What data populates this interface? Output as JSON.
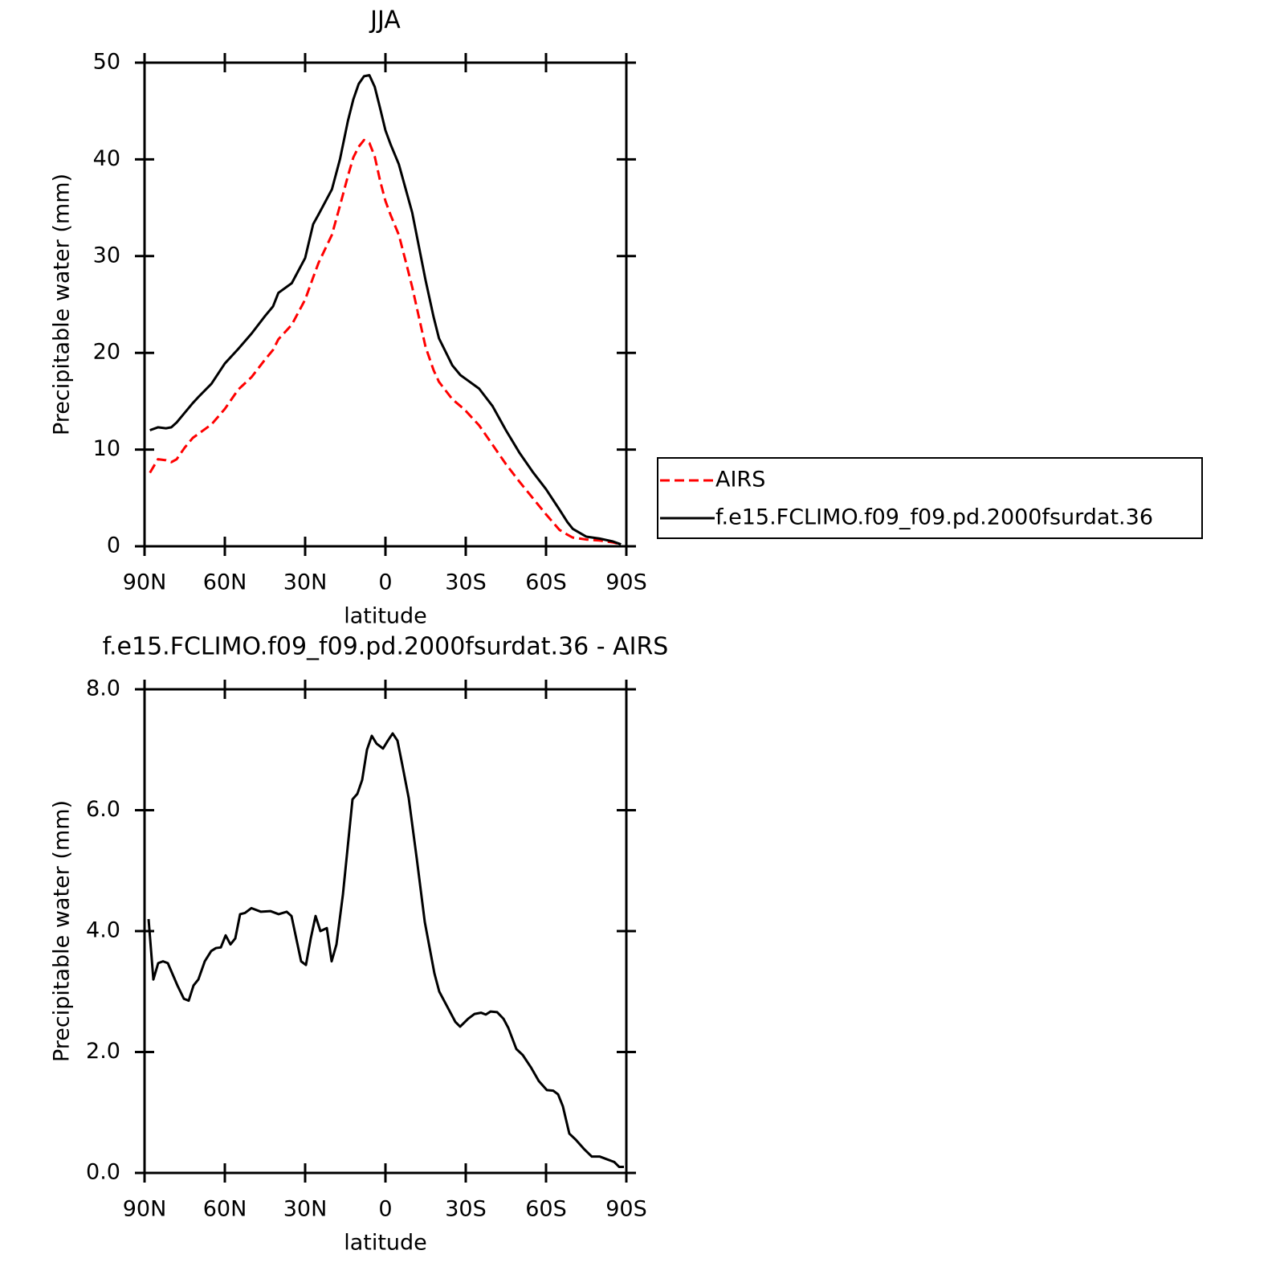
{
  "chart_data": [
    {
      "type": "line",
      "title": "JJA",
      "xlabel": "latitude",
      "ylabel": "Precipitable water (mm)",
      "xlim": [
        90,
        -90
      ],
      "xticks": [
        {
          "value": 90,
          "label": "90N"
        },
        {
          "value": 60,
          "label": "60N"
        },
        {
          "value": 30,
          "label": "30N"
        },
        0,
        {
          "value": -30,
          "label": "30S"
        },
        {
          "value": -60,
          "label": "60S"
        },
        {
          "value": -90,
          "label": "90S"
        }
      ],
      "ylim": [
        0,
        50
      ],
      "yticks": [
        0,
        10,
        20,
        30,
        40,
        50
      ],
      "legend_position": "right",
      "x": [
        88,
        85,
        82,
        80,
        78,
        75,
        72,
        70,
        65,
        60,
        55,
        50,
        45,
        42,
        40,
        35,
        30,
        27,
        25,
        20,
        17,
        14,
        12,
        10,
        8,
        6,
        4,
        2,
        0,
        -2,
        -5,
        -8,
        -10,
        -15,
        -18,
        -20,
        -25,
        -28,
        -30,
        -35,
        -40,
        -45,
        -50,
        -55,
        -60,
        -65,
        -68,
        -70,
        -75,
        -80,
        -85,
        -88
      ],
      "series": [
        {
          "name": "AIRS",
          "color": "#ff0000",
          "linestyle": "dashed",
          "values": [
            7.6,
            9.0,
            8.9,
            8.7,
            9.0,
            10.2,
            11.2,
            11.6,
            12.6,
            14.2,
            16.2,
            17.5,
            19.3,
            20.3,
            21.4,
            22.9,
            25.5,
            27.8,
            29.3,
            32.2,
            35.2,
            38.3,
            40.2,
            41.3,
            42.0,
            41.7,
            40.3,
            37.8,
            35.7,
            34.2,
            32.2,
            29,
            26.8,
            20.6,
            18.2,
            17,
            15.2,
            14.5,
            14,
            12.5,
            10.5,
            8.5,
            6.7,
            5,
            3.3,
            1.7,
            1.2,
            0.9,
            0.7,
            0.6,
            0.4,
            0.2
          ]
        },
        {
          "name": "f.e15.FCLIMO.f09_f09.pd.2000fsurdat.36",
          "color": "#000000",
          "linestyle": "solid",
          "values": [
            12,
            12.3,
            12.2,
            12.3,
            12.8,
            13.8,
            14.8,
            15.4,
            16.8,
            18.9,
            20.4,
            22,
            23.8,
            24.8,
            26.2,
            27.2,
            29.8,
            33.3,
            34.3,
            36.9,
            40,
            44,
            46.2,
            47.8,
            48.6,
            48.7,
            47.5,
            45.3,
            43,
            41.5,
            39.5,
            36.5,
            34.5,
            27.5,
            23.7,
            21.5,
            18.7,
            17.7,
            17.3,
            16.3,
            14.5,
            12,
            9.7,
            7.7,
            5.9,
            3.8,
            2.5,
            1.8,
            1,
            0.8,
            0.5,
            0.2
          ]
        }
      ]
    },
    {
      "type": "line",
      "title": "f.e15.FCLIMO.f09_f09.pd.2000fsurdat.36 - AIRS",
      "xlabel": "latitude",
      "ylabel": "Precipitable water (mm)",
      "xlim": [
        90,
        -90
      ],
      "xticks": [
        {
          "value": 90,
          "label": "90N"
        },
        {
          "value": 60,
          "label": "60N"
        },
        {
          "value": 30,
          "label": "30N"
        },
        0,
        {
          "value": -30,
          "label": "30S"
        },
        {
          "value": -60,
          "label": "60S"
        },
        {
          "value": -90,
          "label": "90S"
        }
      ],
      "ylim": [
        0,
        8
      ],
      "yticks": [
        {
          "value": 0,
          "label": "0.0"
        },
        {
          "value": 2,
          "label": "2.0"
        },
        {
          "value": 4,
          "label": "4.0"
        },
        {
          "value": 6,
          "label": "6.0"
        },
        {
          "value": 8,
          "label": "8.0"
        }
      ],
      "x": [
        88.5,
        86.7,
        84.9,
        83.1,
        81.3,
        77.7,
        75.3,
        73.5,
        71.7,
        69.9,
        67.5,
        65.1,
        63.3,
        61.5,
        59.7,
        57.9,
        56.1,
        54.3,
        52.5,
        50.1,
        46.5,
        42.9,
        39.9,
        36.9,
        35.1,
        31.5,
        29.7,
        27.9,
        26.1,
        24.3,
        21.9,
        20.1,
        18.3,
        15.9,
        12.3,
        10.5,
        8.7,
        6.9,
        5.1,
        3.3,
        0.9,
        -0.9,
        -2.7,
        -4.5,
        -6.3,
        -8.7,
        -11.7,
        -14.7,
        -18.3,
        -20.1,
        -23.1,
        -26.1,
        -27.9,
        -30.9,
        -33.3,
        -35.7,
        -37.5,
        -39.3,
        -41.7,
        -44.1,
        -45.9,
        -48.9,
        -51.3,
        -54.3,
        -57.3,
        -60.3,
        -62.7,
        -64.5,
        -66.3,
        -68.7,
        -71.1,
        -74.1,
        -77.1,
        -80.1,
        -83.1,
        -85.5,
        -87.3,
        -89.1
      ],
      "series": [
        {
          "color": "#000000",
          "linestyle": "solid",
          "values": [
            4.2,
            3.2,
            3.47,
            3.5,
            3.47,
            3.1,
            2.88,
            2.85,
            3.1,
            3.2,
            3.5,
            3.67,
            3.72,
            3.73,
            3.93,
            3.78,
            3.88,
            4.28,
            4.3,
            4.38,
            4.32,
            4.33,
            4.28,
            4.32,
            4.25,
            3.5,
            3.44,
            3.88,
            4.25,
            4.0,
            4.05,
            3.5,
            3.78,
            4.6,
            6.18,
            6.27,
            6.5,
            7.0,
            7.23,
            7.1,
            7.02,
            7.15,
            7.27,
            7.15,
            6.75,
            6.2,
            5.2,
            4.15,
            3.3,
            3.0,
            2.75,
            2.5,
            2.42,
            2.55,
            2.63,
            2.65,
            2.62,
            2.67,
            2.66,
            2.55,
            2.4,
            2.05,
            1.95,
            1.75,
            1.52,
            1.37,
            1.36,
            1.3,
            1.1,
            0.65,
            0.55,
            0.4,
            0.27,
            0.27,
            0.22,
            0.18,
            0.1,
            0.1
          ]
        }
      ]
    }
  ]
}
